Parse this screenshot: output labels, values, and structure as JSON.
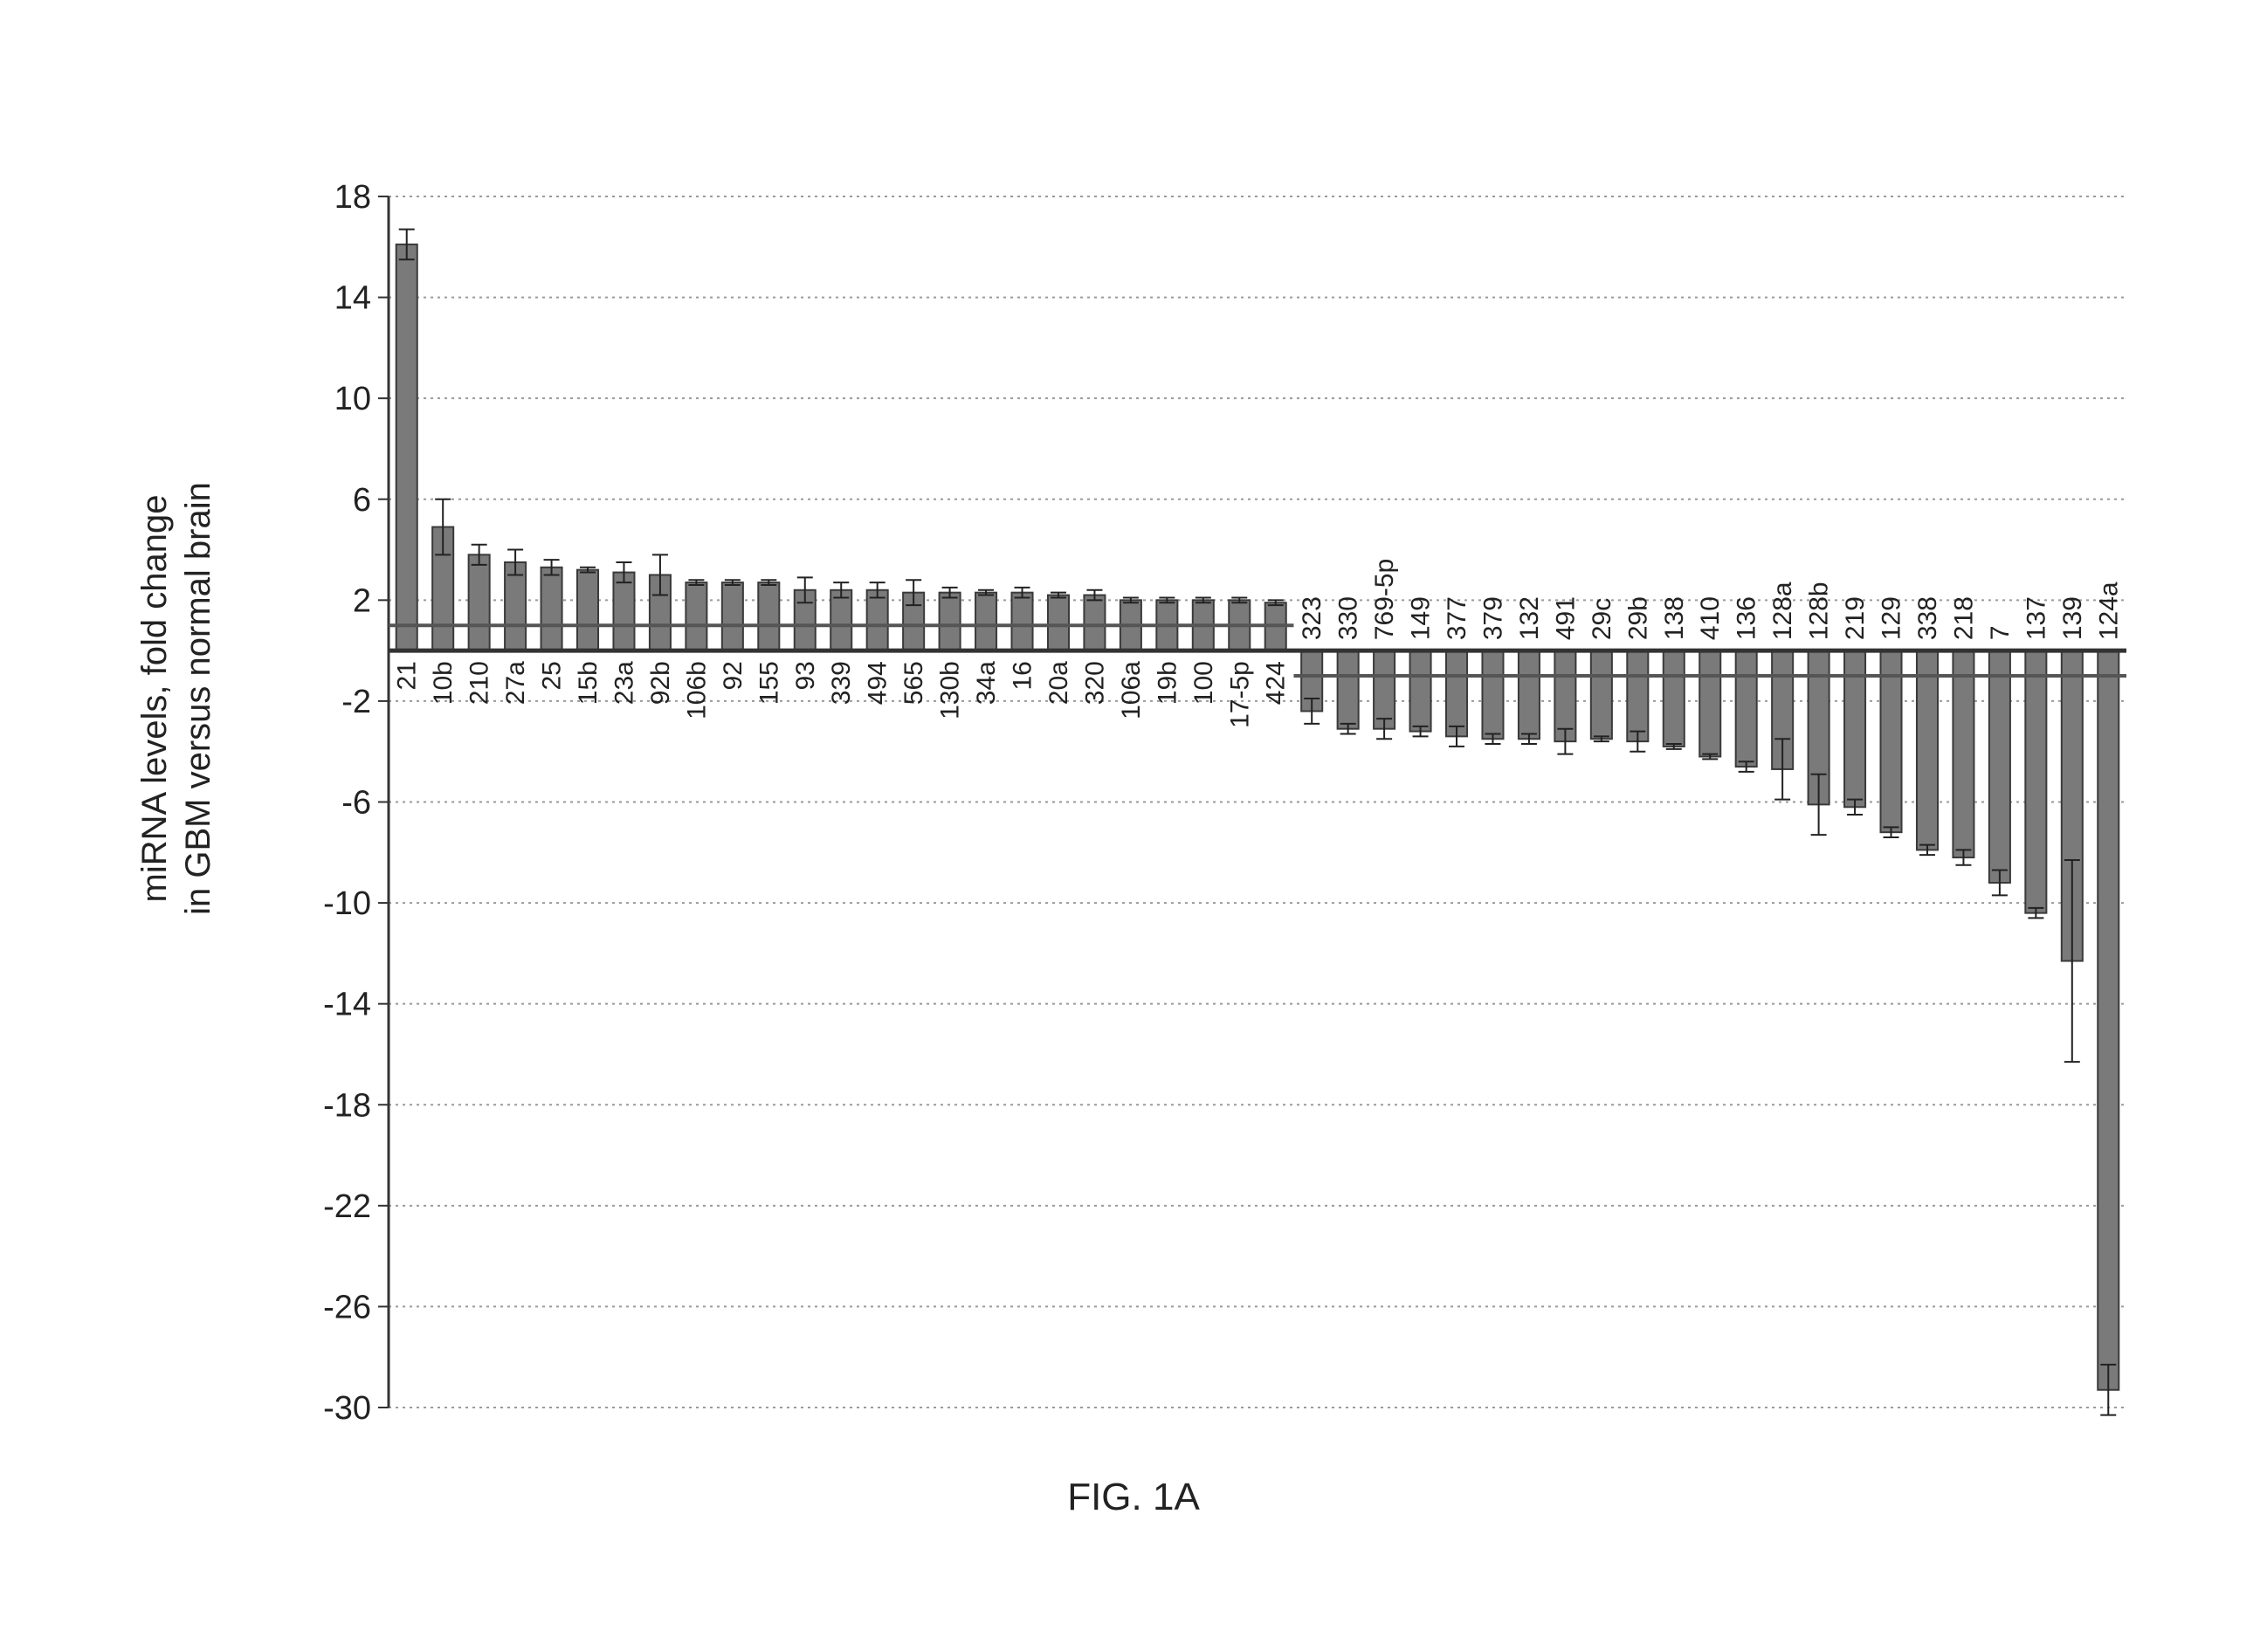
{
  "figure": {
    "caption": "FIG. 1A"
  },
  "chart_data": {
    "type": "bar",
    "title": "",
    "xlabel": "",
    "ylabel_lines": [
      "miRNA levels, fold change",
      "in GBM versus normal brain"
    ],
    "ylim": [
      -30,
      18
    ],
    "yticks": [
      18,
      14,
      10,
      6,
      2,
      -2,
      -6,
      -10,
      -14,
      -18,
      -22,
      -26,
      -30
    ],
    "grid": "horizontal dotted",
    "threshold_lines": [
      1,
      -1
    ],
    "colors": {
      "bar": "#7a7a7a",
      "bar_stroke": "#3a3a3a",
      "axis": "#333333",
      "grid": "#9a9a9a"
    },
    "categories": [
      "21",
      "10b",
      "210",
      "27a",
      "25",
      "15b",
      "23a",
      "92b",
      "106b",
      "92",
      "155",
      "93",
      "339",
      "494",
      "565",
      "130b",
      "34a",
      "16",
      "20a",
      "320",
      "106a",
      "19b",
      "100",
      "17-5p",
      "424",
      "323",
      "330",
      "769-5p",
      "149",
      "377",
      "379",
      "132",
      "491",
      "29c",
      "29b",
      "138",
      "410",
      "136",
      "128a",
      "128b",
      "219",
      "129",
      "338",
      "218",
      "7",
      "137",
      "139",
      "124a"
    ],
    "values": [
      16.1,
      4.9,
      3.8,
      3.5,
      3.3,
      3.2,
      3.1,
      3.0,
      2.7,
      2.7,
      2.7,
      2.4,
      2.4,
      2.4,
      2.3,
      2.3,
      2.3,
      2.3,
      2.2,
      2.2,
      2.0,
      2.0,
      2.0,
      2.0,
      1.9,
      -2.4,
      -3.1,
      -3.1,
      -3.2,
      -3.4,
      -3.5,
      -3.5,
      -3.6,
      -3.5,
      -3.6,
      -3.8,
      -4.2,
      -4.6,
      -4.7,
      -6.1,
      -6.2,
      -7.2,
      -7.9,
      -8.2,
      -9.2,
      -10.4,
      -12.3,
      -29.3
    ],
    "errors": [
      0.6,
      1.1,
      0.4,
      0.5,
      0.3,
      0.1,
      0.4,
      0.8,
      0.1,
      0.1,
      0.1,
      0.5,
      0.3,
      0.3,
      0.5,
      0.2,
      0.1,
      0.2,
      0.1,
      0.2,
      0.1,
      0.1,
      0.1,
      0.1,
      0.1,
      0.5,
      0.2,
      0.4,
      0.2,
      0.4,
      0.2,
      0.2,
      0.5,
      0.1,
      0.4,
      0.1,
      0.1,
      0.2,
      1.2,
      1.2,
      0.3,
      0.2,
      0.2,
      0.3,
      0.5,
      0.2,
      4.0,
      1.0
    ]
  }
}
